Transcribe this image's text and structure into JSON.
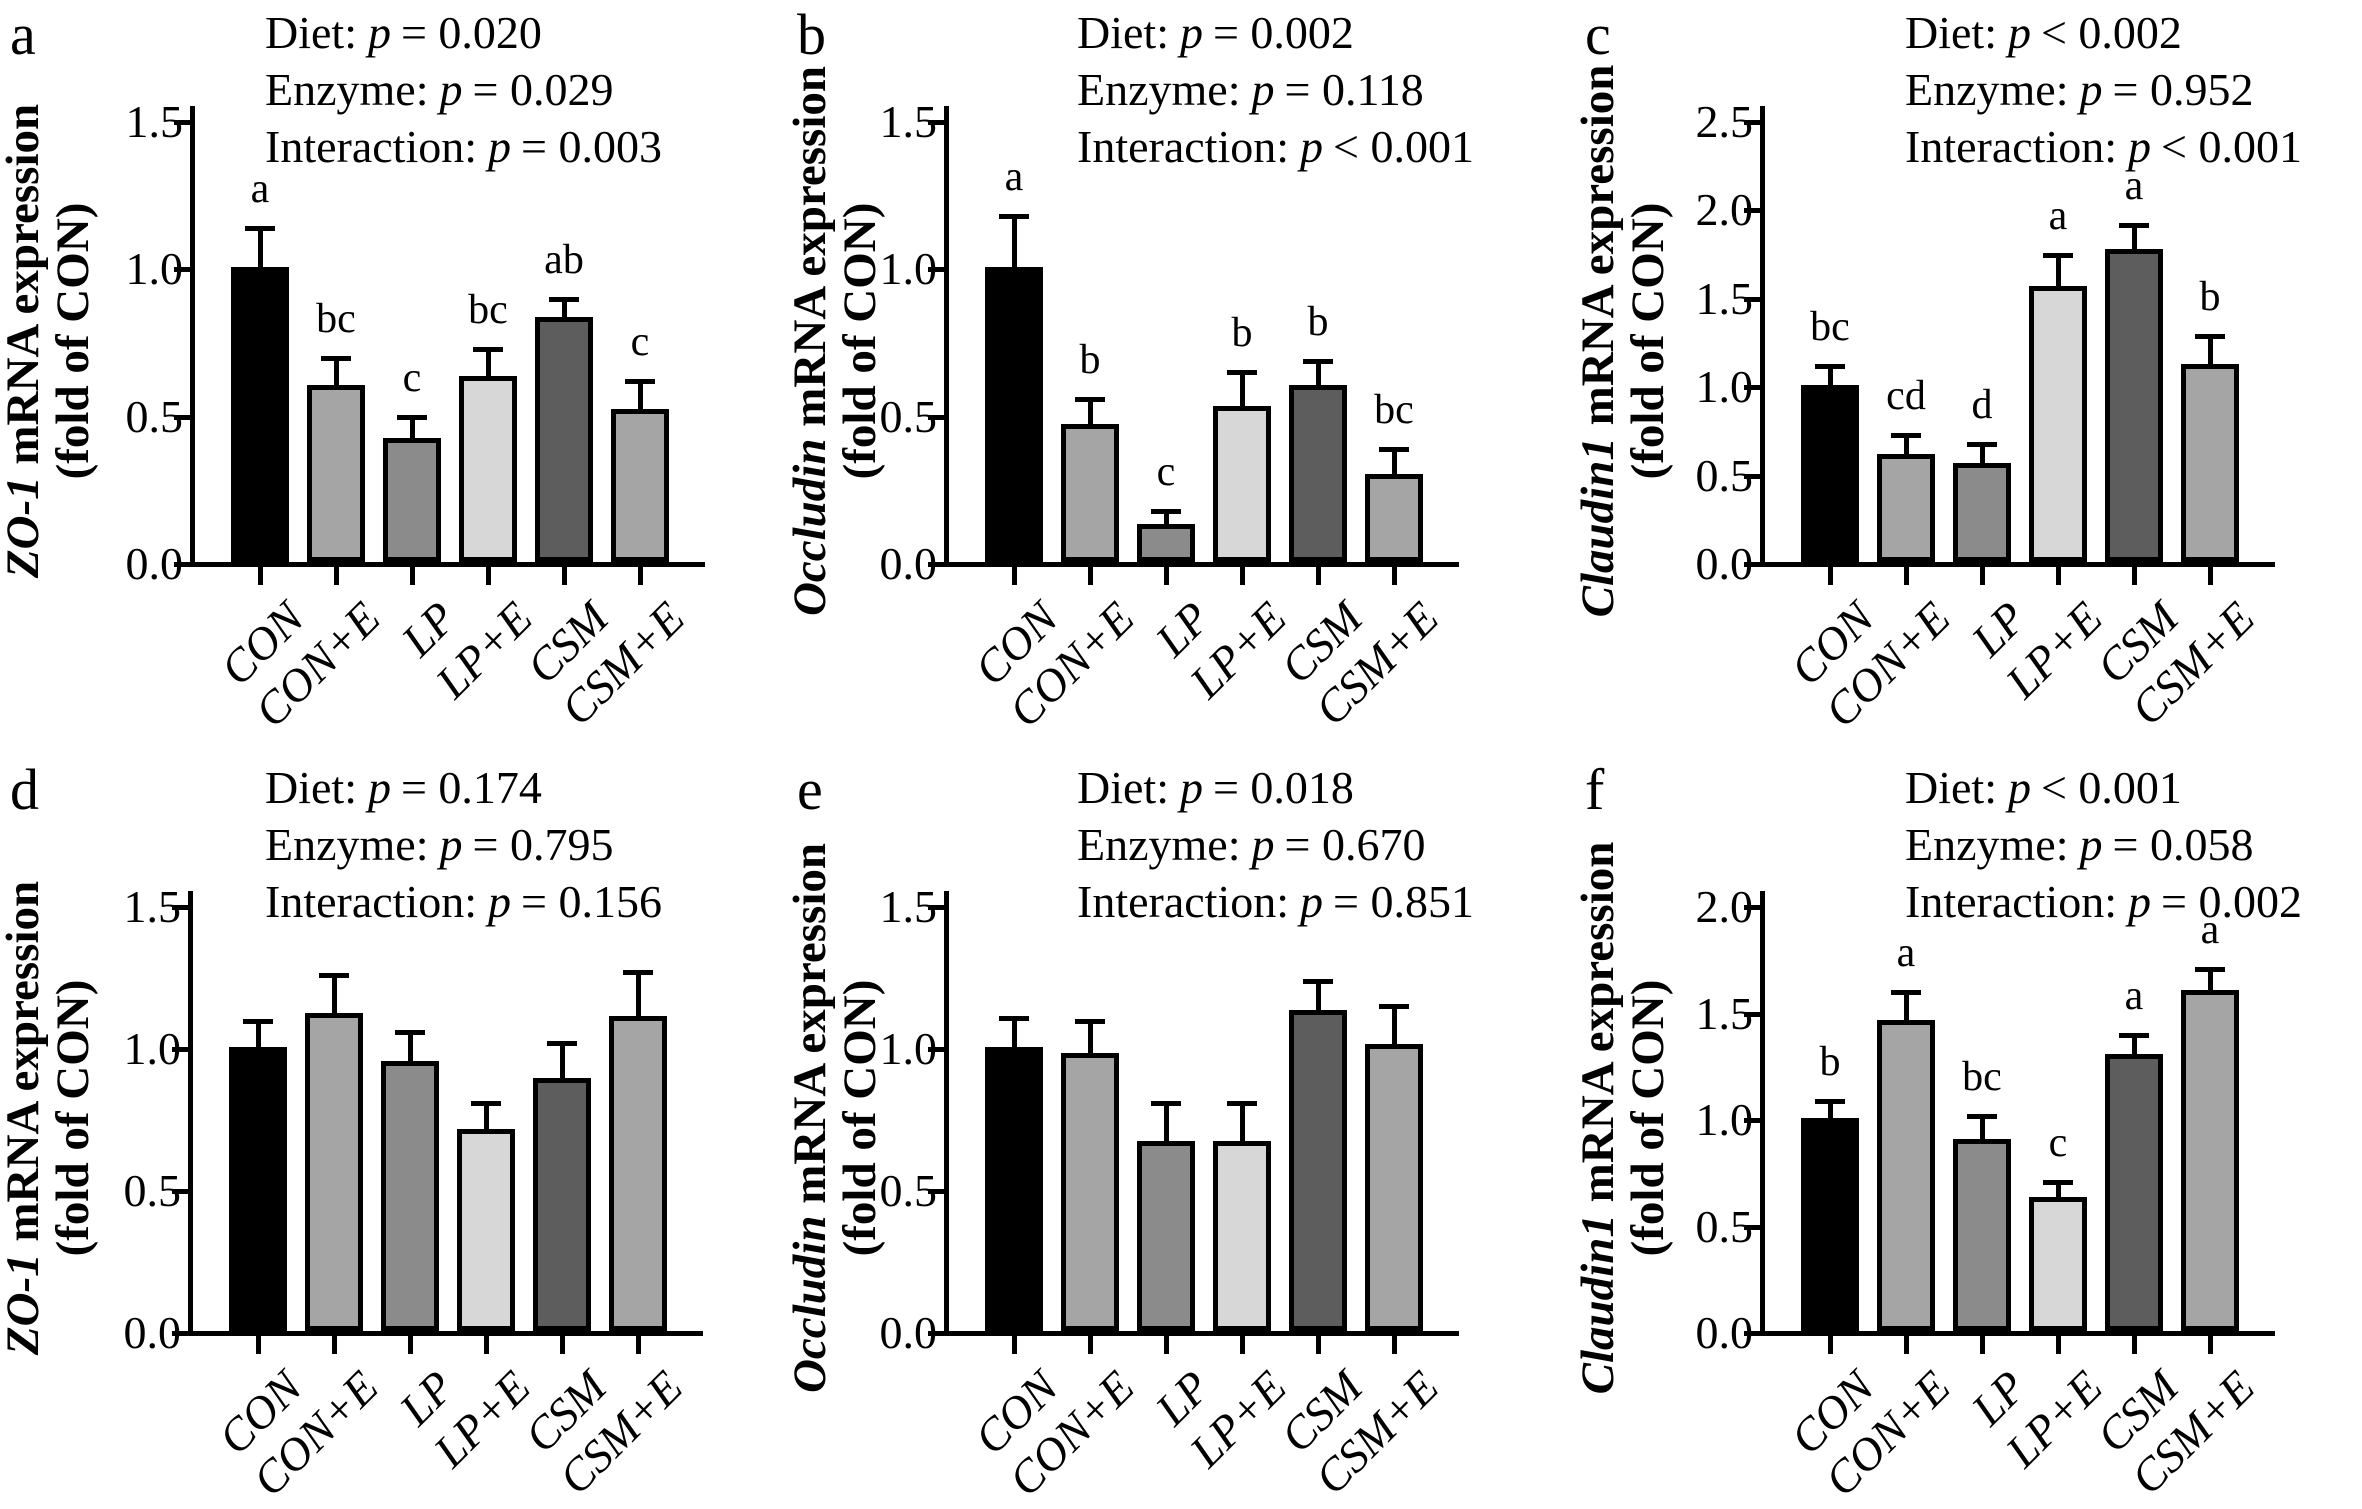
{
  "figure_title": "Tight junction mRNA expression bar charts",
  "p_symbol": "p",
  "colors": {
    "background": "#ffffff",
    "axis": "#000000",
    "bar_fills": [
      "#000000",
      "#a5a5a5",
      "#8b8b8b",
      "#d7d7d7",
      "#5d5d5d",
      "#a5a5a5"
    ]
  },
  "chart_data": [
    {
      "panel": "a",
      "type": "bar",
      "gene": "ZO-1",
      "ylabel_rest": " mRNA expression",
      "ylabel_line2": "(fold of CON)",
      "stats": [
        {
          "label": "Diet:",
          "value": "= 0.020"
        },
        {
          "label": "Enzyme:",
          "value": "= 0.029"
        },
        {
          "label": "Interaction:",
          "value": "= 0.003"
        }
      ],
      "categories": [
        "CON",
        "CON+E",
        "LP",
        "LP+E",
        "CSM",
        "CSM+E"
      ],
      "values": [
        1.0,
        0.6,
        0.42,
        0.63,
        0.83,
        0.52
      ],
      "errors": [
        0.14,
        0.1,
        0.08,
        0.1,
        0.07,
        0.1
      ],
      "sig_letters": [
        "a",
        "bc",
        "c",
        "bc",
        "ab",
        "c"
      ],
      "ymax": 1.5,
      "yticks": [
        "0.0",
        "0.5",
        "1.0",
        "1.5"
      ]
    },
    {
      "panel": "b",
      "type": "bar",
      "gene": "Occludin",
      "ylabel_rest": " mRNA expression",
      "ylabel_line2": "(fold of CON)",
      "stats": [
        {
          "label": "Diet:",
          "value": "= 0.002"
        },
        {
          "label": "Enzyme:",
          "value": "= 0.118"
        },
        {
          "label": "Interaction:",
          "value": "< 0.001"
        }
      ],
      "categories": [
        "CON",
        "CON+E",
        "LP",
        "LP+E",
        "CSM",
        "CSM+E"
      ],
      "values": [
        1.0,
        0.47,
        0.13,
        0.53,
        0.6,
        0.3
      ],
      "errors": [
        0.18,
        0.09,
        0.05,
        0.12,
        0.09,
        0.09
      ],
      "sig_letters": [
        "a",
        "b",
        "c",
        "b",
        "b",
        "bc"
      ],
      "ymax": 1.5,
      "yticks": [
        "0.0",
        "0.5",
        "1.0",
        "1.5"
      ]
    },
    {
      "panel": "c",
      "type": "bar",
      "gene": "Claudin1",
      "ylabel_rest": " mRNA expression",
      "ylabel_line2": "(fold of CON)",
      "stats": [
        {
          "label": "Diet:",
          "value": "< 0.002"
        },
        {
          "label": "Enzyme:",
          "value": "= 0.952"
        },
        {
          "label": "Interaction:",
          "value": "< 0.001"
        }
      ],
      "categories": [
        "CON",
        "CON+E",
        "LP",
        "LP+E",
        "CSM",
        "CSM+E"
      ],
      "values": [
        1.0,
        0.61,
        0.56,
        1.56,
        1.77,
        1.12
      ],
      "errors": [
        0.12,
        0.12,
        0.12,
        0.19,
        0.15,
        0.17
      ],
      "sig_letters": [
        "bc",
        "cd",
        "d",
        "a",
        "a",
        "b"
      ],
      "ymax": 2.5,
      "yticks": [
        "0.0",
        "0.5",
        "1.0",
        "1.5",
        "2.0",
        "2.5"
      ]
    },
    {
      "panel": "d",
      "type": "bar",
      "gene": "ZO-1",
      "ylabel_rest": " mRNA expression",
      "ylabel_line2": "(fold of CON)",
      "stats": [
        {
          "label": "Diet:",
          "value": "= 0.174"
        },
        {
          "label": "Enzyme:",
          "value": "= 0.795"
        },
        {
          "label": "Interaction:",
          "value": "= 0.156"
        }
      ],
      "categories": [
        "CON",
        "CON+E",
        "LP",
        "LP+E",
        "CSM",
        "CSM+E"
      ],
      "values": [
        1.0,
        1.12,
        0.95,
        0.71,
        0.89,
        1.11
      ],
      "errors": [
        0.1,
        0.14,
        0.11,
        0.1,
        0.13,
        0.16
      ],
      "sig_letters": [
        "",
        "",
        "",
        "",
        "",
        ""
      ],
      "ymax": 1.5,
      "yticks": [
        "0.0",
        "0.5",
        "1.0",
        "1.5"
      ]
    },
    {
      "panel": "e",
      "type": "bar",
      "gene": "Occludin",
      "ylabel_rest": " mRNA expression",
      "ylabel_line2": "(fold of CON)",
      "stats": [
        {
          "label": "Diet:",
          "value": "= 0.018"
        },
        {
          "label": "Enzyme:",
          "value": "= 0.670"
        },
        {
          "label": "Interaction:",
          "value": "= 0.851"
        }
      ],
      "categories": [
        "CON",
        "CON+E",
        "LP",
        "LP+E",
        "CSM",
        "CSM+E"
      ],
      "values": [
        1.0,
        0.98,
        0.67,
        0.67,
        1.13,
        1.01
      ],
      "errors": [
        0.11,
        0.12,
        0.14,
        0.14,
        0.11,
        0.14
      ],
      "sig_letters": [
        "",
        "",
        "",
        "",
        "",
        ""
      ],
      "ymax": 1.5,
      "yticks": [
        "0.0",
        "0.5",
        "1.0",
        "1.5"
      ]
    },
    {
      "panel": "f",
      "type": "bar",
      "gene": "Claudin1",
      "ylabel_rest": " mRNA expression",
      "ylabel_line2": "(fold of CON)",
      "stats": [
        {
          "label": "Diet:",
          "value": "< 0.001"
        },
        {
          "label": "Enzyme:",
          "value": "= 0.058"
        },
        {
          "label": "Interaction:",
          "value": "= 0.002"
        }
      ],
      "categories": [
        "CON",
        "CON+E",
        "LP",
        "LP+E",
        "CSM",
        "CSM+E"
      ],
      "values": [
        1.0,
        1.46,
        0.9,
        0.63,
        1.3,
        1.6
      ],
      "errors": [
        0.09,
        0.14,
        0.12,
        0.08,
        0.1,
        0.11
      ],
      "sig_letters": [
        "b",
        "a",
        "bc",
        "c",
        "a",
        "a"
      ],
      "ymax": 2.0,
      "yticks": [
        "0.0",
        "0.5",
        "1.0",
        "1.5",
        "2.0"
      ]
    }
  ]
}
